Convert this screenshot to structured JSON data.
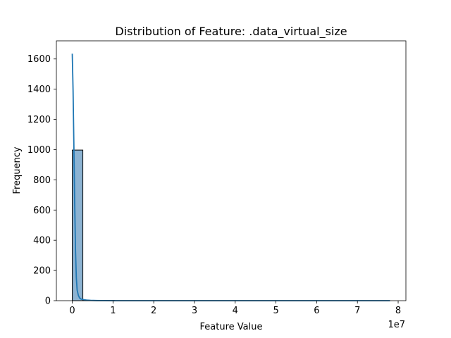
{
  "chart_data": {
    "type": "bar",
    "title": "Distribution of Feature: .data_virtual_size",
    "xlabel": "Feature Value",
    "ylabel": "Frequency",
    "x_offset_text": "1e7",
    "xlim": [
      -0.39,
      8.19
    ],
    "ylim": [
      0,
      1720
    ],
    "xticks": [
      0,
      1,
      2,
      3,
      4,
      5,
      6,
      7,
      8
    ],
    "xtick_labels": [
      "0",
      "1",
      "2",
      "3",
      "4",
      "5",
      "6",
      "7",
      "8"
    ],
    "yticks": [
      0,
      200,
      400,
      600,
      800,
      1000,
      1200,
      1400,
      1600
    ],
    "ytick_labels": [
      "0",
      "200",
      "400",
      "600",
      "800",
      "1000",
      "1200",
      "1400",
      "1600"
    ],
    "bin_width": 0.26,
    "bins": [
      {
        "start": 0.0,
        "count": 997
      },
      {
        "start": 0.26,
        "count": 2
      },
      {
        "start": 0.52,
        "count": 1
      },
      {
        "start": 0.78,
        "count": 1
      },
      {
        "start": 1.04,
        "count": 0
      },
      {
        "start": 1.3,
        "count": 0
      },
      {
        "start": 1.56,
        "count": 0
      },
      {
        "start": 1.82,
        "count": 0
      },
      {
        "start": 2.08,
        "count": 0
      },
      {
        "start": 2.34,
        "count": 0
      },
      {
        "start": 2.6,
        "count": 0
      },
      {
        "start": 2.86,
        "count": 0
      },
      {
        "start": 3.12,
        "count": 0
      },
      {
        "start": 3.38,
        "count": 0
      },
      {
        "start": 3.64,
        "count": 0
      },
      {
        "start": 3.9,
        "count": 0
      },
      {
        "start": 4.16,
        "count": 0
      },
      {
        "start": 4.42,
        "count": 0
      },
      {
        "start": 4.68,
        "count": 0
      },
      {
        "start": 4.94,
        "count": 0
      },
      {
        "start": 5.2,
        "count": 0
      },
      {
        "start": 5.46,
        "count": 0
      },
      {
        "start": 5.72,
        "count": 0
      },
      {
        "start": 5.98,
        "count": 0
      },
      {
        "start": 6.24,
        "count": 0
      },
      {
        "start": 6.5,
        "count": 0
      },
      {
        "start": 6.76,
        "count": 0
      },
      {
        "start": 7.02,
        "count": 0
      },
      {
        "start": 7.28,
        "count": 0
      },
      {
        "start": 7.54,
        "count": 0
      }
    ],
    "kde": {
      "x": [
        0.0,
        0.02,
        0.04,
        0.06,
        0.08,
        0.1,
        0.12,
        0.15,
        0.18,
        0.22,
        0.26,
        0.3,
        0.35,
        0.45,
        0.6,
        0.8,
        1.0,
        2.0,
        3.0,
        4.0,
        5.0,
        6.0,
        7.0,
        7.8
      ],
      "y": [
        1635,
        1390,
        1020,
        640,
        330,
        150,
        70,
        35,
        18,
        10,
        8,
        6,
        4,
        2,
        1,
        0.5,
        0,
        0,
        0,
        0,
        0,
        0,
        0,
        0
      ]
    },
    "colors": {
      "bar_fill": "#8db3d2",
      "bar_edge": "#000000",
      "kde_line": "#1f77b4"
    },
    "grid": false,
    "legend": "none"
  }
}
